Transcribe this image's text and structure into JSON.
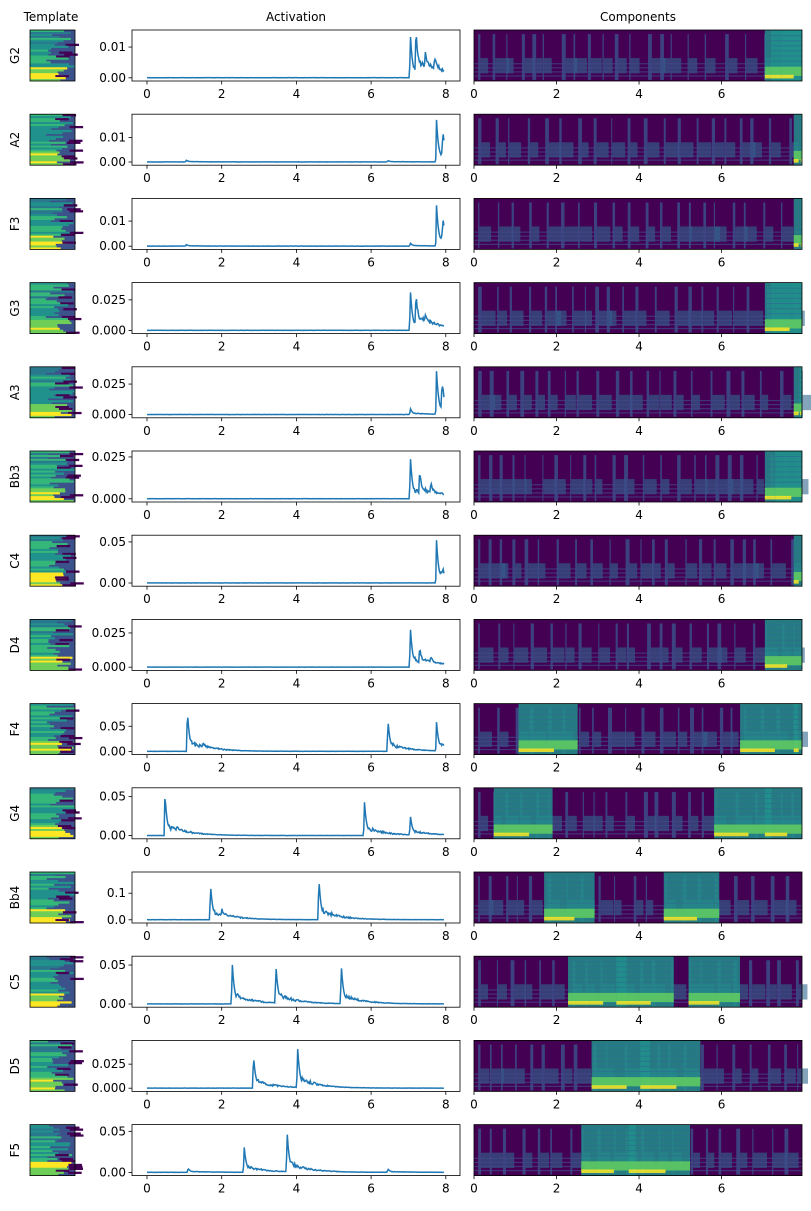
{
  "figure": {
    "column_titles": {
      "template": "Template",
      "activation": "Activation",
      "components": "Components"
    }
  },
  "chart_data": {
    "type": "line",
    "title": "",
    "xlabel": "",
    "ylabel": "",
    "xlim": [
      0,
      8
    ],
    "xticks": [
      0,
      2,
      4,
      6,
      8
    ],
    "component_xticks": [
      0,
      2,
      4,
      6
    ],
    "colors": {
      "line": "#1f77b4",
      "spectro_bg": "#440154",
      "spectro_mid": "#3b528b",
      "spectro_hi": "#21918c",
      "spectro_top": "#fde725"
    },
    "rows": [
      {
        "note": "G2",
        "yticks": [
          "0.00",
          "0.01"
        ],
        "ytick_values": [
          0,
          0.01
        ],
        "ymax": 0.0147,
        "peaks": [
          [
            7.05,
            0.0145
          ],
          [
            7.2,
            0.0125
          ],
          [
            7.45,
            0.006
          ],
          [
            7.7,
            0.004
          ]
        ]
      },
      {
        "note": "A2",
        "yticks": [
          "0.00",
          "0.01"
        ],
        "ytick_values": [
          0,
          0.01
        ],
        "ymax": 0.0185,
        "peaks": [
          [
            7.75,
            0.0175
          ],
          [
            7.92,
            0.009
          ],
          [
            1.05,
            0.0007
          ],
          [
            6.45,
            0.0006
          ]
        ]
      },
      {
        "note": "F3",
        "yticks": [
          "0.00",
          "0.01"
        ],
        "ytick_values": [
          0,
          0.01
        ],
        "ymax": 0.018,
        "peaks": [
          [
            7.75,
            0.0165
          ],
          [
            7.92,
            0.0085
          ],
          [
            7.05,
            0.0012
          ],
          [
            1.05,
            0.0006
          ]
        ]
      },
      {
        "note": "G3",
        "yticks": [
          "0.000",
          "0.025"
        ],
        "ytick_values": [
          0,
          0.025
        ],
        "ymax": 0.037,
        "peaks": [
          [
            7.05,
            0.034
          ],
          [
            7.2,
            0.024
          ],
          [
            7.45,
            0.006
          ]
        ]
      },
      {
        "note": "A3",
        "yticks": [
          "0.000",
          "0.025"
        ],
        "ytick_values": [
          0,
          0.025
        ],
        "ymax": 0.037,
        "peaks": [
          [
            7.75,
            0.036
          ],
          [
            7.9,
            0.02
          ],
          [
            7.05,
            0.005
          ]
        ]
      },
      {
        "note": "Bb3",
        "yticks": [
          "0.000",
          "0.025"
        ],
        "ytick_values": [
          0,
          0.025
        ],
        "ymax": 0.027,
        "peaks": [
          [
            7.05,
            0.026
          ],
          [
            7.3,
            0.013
          ],
          [
            7.6,
            0.005
          ]
        ]
      },
      {
        "note": "C4",
        "yticks": [
          "0.00",
          "0.05"
        ],
        "ytick_values": [
          0,
          0.05
        ],
        "ymax": 0.055,
        "peaks": [
          [
            7.75,
            0.053
          ],
          [
            7.9,
            0.008
          ]
        ]
      },
      {
        "note": "D4",
        "yticks": [
          "0.000",
          "0.025"
        ],
        "ytick_values": [
          0,
          0.025
        ],
        "ymax": 0.033,
        "peaks": [
          [
            7.05,
            0.03
          ],
          [
            7.3,
            0.009
          ],
          [
            7.6,
            0.004
          ]
        ]
      },
      {
        "note": "F4",
        "yticks": [
          "0.00",
          "0.05"
        ],
        "ytick_values": [
          0,
          0.05
        ],
        "ymax": 0.09,
        "peaks": [
          [
            1.08,
            0.083
          ],
          [
            6.45,
            0.064
          ],
          [
            7.75,
            0.058
          ],
          [
            1.5,
            0.01
          ]
        ]
      },
      {
        "note": "G4",
        "yticks": [
          "0.00",
          "0.05"
        ],
        "ytick_values": [
          0,
          0.05
        ],
        "ymax": 0.058,
        "peaks": [
          [
            0.48,
            0.055
          ],
          [
            5.82,
            0.045
          ],
          [
            7.05,
            0.025
          ],
          [
            0.8,
            0.007
          ]
        ]
      },
      {
        "note": "Bb4",
        "yticks": [
          "0.0",
          "0.1"
        ],
        "ytick_values": [
          0,
          0.1
        ],
        "ymax": 0.17,
        "peaks": [
          [
            1.7,
            0.135
          ],
          [
            4.6,
            0.16
          ],
          [
            2.0,
            0.02
          ]
        ]
      },
      {
        "note": "C5",
        "yticks": [
          "0.00",
          "0.05"
        ],
        "ytick_values": [
          0,
          0.05
        ],
        "ymax": 0.058,
        "peaks": [
          [
            2.28,
            0.055
          ],
          [
            3.45,
            0.05
          ],
          [
            5.2,
            0.051
          ]
        ]
      },
      {
        "note": "D5",
        "yticks": [
          "0.000",
          "0.025"
        ],
        "ytick_values": [
          0,
          0.025
        ],
        "ymax": 0.047,
        "peaks": [
          [
            2.85,
            0.035
          ],
          [
            4.03,
            0.043
          ]
        ]
      },
      {
        "note": "F5",
        "yticks": [
          "0.00",
          "0.05"
        ],
        "ytick_values": [
          0,
          0.05
        ],
        "ymax": 0.055,
        "peaks": [
          [
            2.6,
            0.032
          ],
          [
            3.75,
            0.05
          ],
          [
            1.1,
            0.005
          ],
          [
            6.45,
            0.004
          ]
        ]
      }
    ]
  }
}
